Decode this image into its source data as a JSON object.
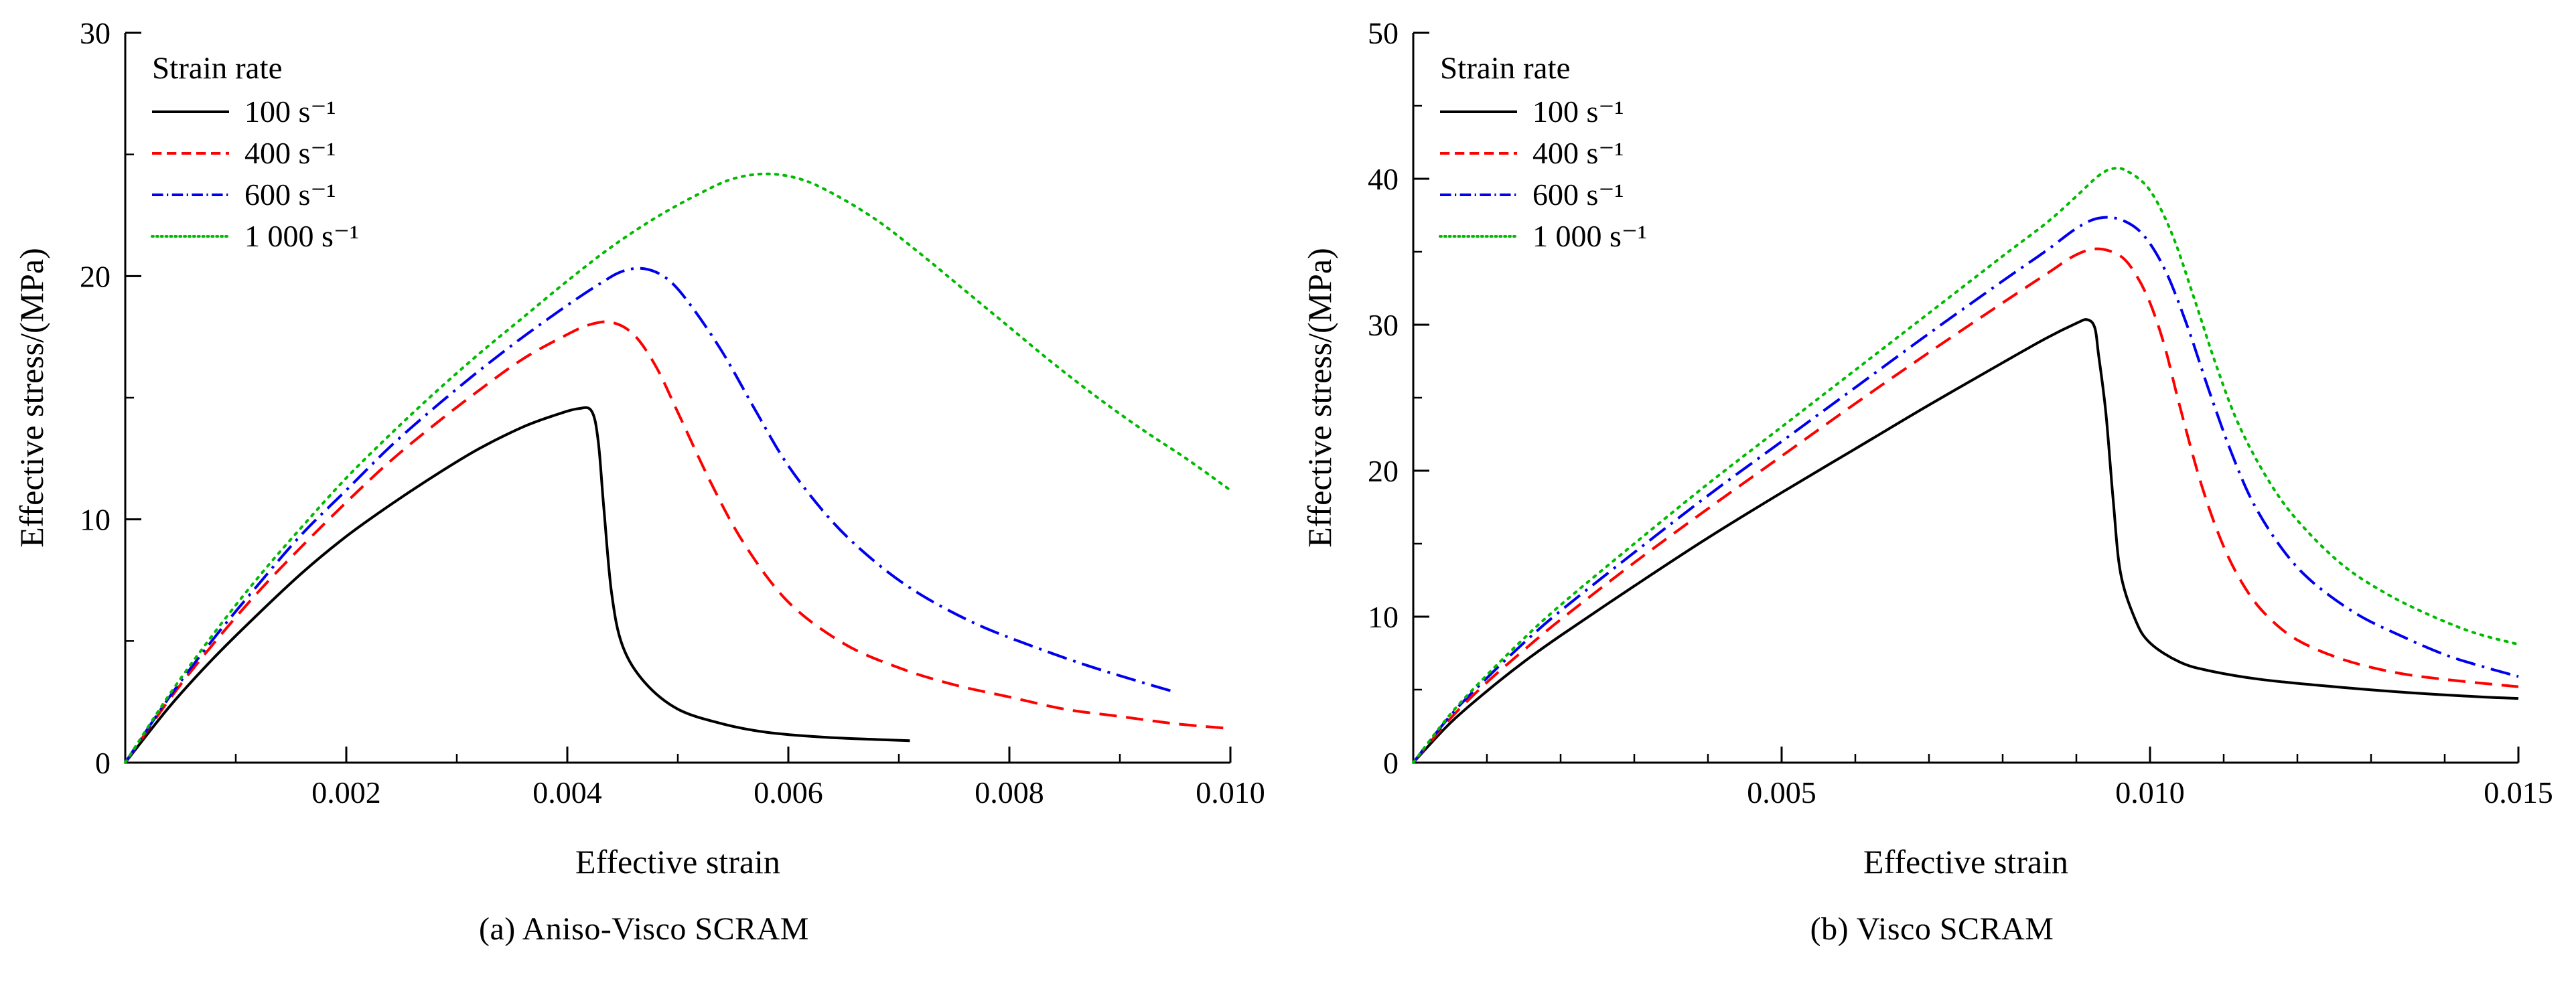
{
  "figure": {
    "background": "#ffffff",
    "text_color": "#000000"
  },
  "chart_data": [
    {
      "type": "line",
      "id": "a",
      "caption": "(a) Aniso-Visco SCRAM",
      "xlabel": "Effective strain",
      "ylabel": "Effective stress/(MPa)",
      "xlim": [
        0,
        0.01
      ],
      "ylim": [
        0,
        30
      ],
      "xticks": [
        0.002,
        0.004,
        0.006,
        0.008,
        0.01
      ],
      "xtick_labels": [
        "0.002",
        "0.004",
        "0.006",
        "0.008",
        "0.010"
      ],
      "yticks": [
        0,
        10,
        20,
        30
      ],
      "ytick_labels": [
        "0",
        "10",
        "20",
        "30"
      ],
      "x_minor_step": 0.001,
      "y_minor_step": 5,
      "grid": false,
      "legend": {
        "title": "Strain rate",
        "position": "top-left"
      },
      "series": [
        {
          "name": "100 s⁻¹",
          "color": "#000000",
          "dash": [],
          "cap": "butt",
          "points": [
            [
              0,
              0
            ],
            [
              0.0004,
              2.3
            ],
            [
              0.0008,
              4.3
            ],
            [
              0.0012,
              6.1
            ],
            [
              0.0016,
              7.8
            ],
            [
              0.002,
              9.3
            ],
            [
              0.0024,
              10.6
            ],
            [
              0.0028,
              11.8
            ],
            [
              0.0032,
              12.9
            ],
            [
              0.0036,
              13.8
            ],
            [
              0.0039,
              14.3
            ],
            [
              0.0041,
              14.55
            ],
            [
              0.00422,
              14.45
            ],
            [
              0.00428,
              13.2
            ],
            [
              0.00433,
              10.5
            ],
            [
              0.0044,
              7.0
            ],
            [
              0.0045,
              4.8
            ],
            [
              0.0047,
              3.3
            ],
            [
              0.005,
              2.2
            ],
            [
              0.0054,
              1.6
            ],
            [
              0.0058,
              1.25
            ],
            [
              0.0063,
              1.05
            ],
            [
              0.0068,
              0.95
            ],
            [
              0.0071,
              0.9
            ]
          ]
        },
        {
          "name": "400 s⁻¹",
          "color": "#ff0000",
          "dash": [
            26,
            14
          ],
          "cap": "butt",
          "points": [
            [
              0,
              0
            ],
            [
              0.0004,
              2.6
            ],
            [
              0.0008,
              4.9
            ],
            [
              0.0012,
              7.0
            ],
            [
              0.0016,
              8.9
            ],
            [
              0.002,
              10.7
            ],
            [
              0.0024,
              12.4
            ],
            [
              0.0028,
              13.9
            ],
            [
              0.0032,
              15.3
            ],
            [
              0.0036,
              16.6
            ],
            [
              0.004,
              17.6
            ],
            [
              0.0042,
              18.0
            ],
            [
              0.0044,
              18.1
            ],
            [
              0.0046,
              17.6
            ],
            [
              0.0048,
              16.3
            ],
            [
              0.005,
              14.4
            ],
            [
              0.0053,
              11.5
            ],
            [
              0.0056,
              9.0
            ],
            [
              0.006,
              6.6
            ],
            [
              0.0065,
              4.9
            ],
            [
              0.007,
              3.9
            ],
            [
              0.0075,
              3.2
            ],
            [
              0.008,
              2.7
            ],
            [
              0.0085,
              2.2
            ],
            [
              0.009,
              1.9
            ],
            [
              0.0095,
              1.6
            ],
            [
              0.01,
              1.4
            ]
          ]
        },
        {
          "name": "600 s⁻¹",
          "color": "#0000ee",
          "dash": [
            30,
            10,
            4,
            10
          ],
          "cap": "butt",
          "points": [
            [
              0,
              0
            ],
            [
              0.0004,
              2.7
            ],
            [
              0.0008,
              5.1
            ],
            [
              0.0012,
              7.3
            ],
            [
              0.0016,
              9.4
            ],
            [
              0.002,
              11.2
            ],
            [
              0.0024,
              13.0
            ],
            [
              0.0028,
              14.6
            ],
            [
              0.0032,
              16.1
            ],
            [
              0.0036,
              17.5
            ],
            [
              0.004,
              18.8
            ],
            [
              0.0043,
              19.7
            ],
            [
              0.0045,
              20.2
            ],
            [
              0.0047,
              20.3
            ],
            [
              0.0049,
              19.9
            ],
            [
              0.0051,
              18.9
            ],
            [
              0.0054,
              16.9
            ],
            [
              0.0057,
              14.5
            ],
            [
              0.006,
              12.2
            ],
            [
              0.0064,
              9.9
            ],
            [
              0.0068,
              8.2
            ],
            [
              0.0072,
              6.9
            ],
            [
              0.0077,
              5.7
            ],
            [
              0.0082,
              4.8
            ],
            [
              0.0087,
              4.0
            ],
            [
              0.0092,
              3.3
            ],
            [
              0.0095,
              2.9
            ]
          ]
        },
        {
          "name": "1 000 s⁻¹",
          "color": "#00bb00",
          "dash": [
            3.5,
            9
          ],
          "cap": "round",
          "points": [
            [
              0,
              0
            ],
            [
              0.0004,
              2.8
            ],
            [
              0.0008,
              5.3
            ],
            [
              0.0012,
              7.6
            ],
            [
              0.0016,
              9.7
            ],
            [
              0.002,
              11.7
            ],
            [
              0.0024,
              13.5
            ],
            [
              0.0028,
              15.2
            ],
            [
              0.0032,
              16.8
            ],
            [
              0.0036,
              18.3
            ],
            [
              0.004,
              19.8
            ],
            [
              0.0044,
              21.2
            ],
            [
              0.0048,
              22.4
            ],
            [
              0.0052,
              23.4
            ],
            [
              0.0055,
              24.0
            ],
            [
              0.0058,
              24.2
            ],
            [
              0.0061,
              24.0
            ],
            [
              0.0064,
              23.4
            ],
            [
              0.0068,
              22.3
            ],
            [
              0.0072,
              20.9
            ],
            [
              0.0076,
              19.4
            ],
            [
              0.008,
              17.9
            ],
            [
              0.0084,
              16.4
            ],
            [
              0.0088,
              15.0
            ],
            [
              0.0092,
              13.7
            ],
            [
              0.0096,
              12.5
            ],
            [
              0.01,
              11.2
            ]
          ]
        }
      ]
    },
    {
      "type": "line",
      "id": "b",
      "caption": "(b) Visco SCRAM",
      "xlabel": "Effective strain",
      "ylabel": "Effective stress/(MPa)",
      "xlim": [
        0,
        0.015
      ],
      "ylim": [
        0,
        50
      ],
      "xticks": [
        0.005,
        0.01,
        0.015
      ],
      "xtick_labels": [
        "0.005",
        "0.010",
        "0.015"
      ],
      "yticks": [
        0,
        10,
        20,
        30,
        40,
        50
      ],
      "ytick_labels": [
        "0",
        "10",
        "20",
        "30",
        "40",
        "50"
      ],
      "x_minor_step": 0.001,
      "y_minor_step": 5,
      "grid": false,
      "legend": {
        "title": "Strain rate",
        "position": "top-left"
      },
      "series": [
        {
          "name": "100 s⁻¹",
          "color": "#000000",
          "dash": [],
          "cap": "butt",
          "points": [
            [
              0,
              0
            ],
            [
              0.0005,
              2.7
            ],
            [
              0.001,
              4.9
            ],
            [
              0.0015,
              6.9
            ],
            [
              0.002,
              8.7
            ],
            [
              0.003,
              12.1
            ],
            [
              0.004,
              15.4
            ],
            [
              0.005,
              18.5
            ],
            [
              0.006,
              21.5
            ],
            [
              0.007,
              24.5
            ],
            [
              0.008,
              27.4
            ],
            [
              0.0086,
              29.1
            ],
            [
              0.009,
              30.1
            ],
            [
              0.00915,
              30.35
            ],
            [
              0.00925,
              29.8
            ],
            [
              0.0093,
              28.0
            ],
            [
              0.0094,
              24.0
            ],
            [
              0.0095,
              18.0
            ],
            [
              0.0096,
              13.0
            ],
            [
              0.0098,
              9.8
            ],
            [
              0.01,
              8.2
            ],
            [
              0.0104,
              6.9
            ],
            [
              0.0108,
              6.3
            ],
            [
              0.0115,
              5.7
            ],
            [
              0.0125,
              5.2
            ],
            [
              0.0135,
              4.8
            ],
            [
              0.0145,
              4.5
            ],
            [
              0.015,
              4.4
            ]
          ]
        },
        {
          "name": "400 s⁻¹",
          "color": "#ff0000",
          "dash": [
            26,
            14
          ],
          "cap": "butt",
          "points": [
            [
              0,
              0
            ],
            [
              0.0005,
              3.0
            ],
            [
              0.001,
              5.5
            ],
            [
              0.0015,
              7.7
            ],
            [
              0.002,
              9.8
            ],
            [
              0.003,
              13.7
            ],
            [
              0.004,
              17.4
            ],
            [
              0.005,
              21.0
            ],
            [
              0.006,
              24.6
            ],
            [
              0.007,
              28.1
            ],
            [
              0.008,
              31.5
            ],
            [
              0.0086,
              33.5
            ],
            [
              0.009,
              34.8
            ],
            [
              0.0093,
              35.2
            ],
            [
              0.0096,
              34.7
            ],
            [
              0.0098,
              33.5
            ],
            [
              0.01,
              31.5
            ],
            [
              0.0102,
              28.5
            ],
            [
              0.0104,
              24.5
            ],
            [
              0.0107,
              19.0
            ],
            [
              0.011,
              14.8
            ],
            [
              0.0113,
              11.9
            ],
            [
              0.0116,
              10.0
            ],
            [
              0.012,
              8.4
            ],
            [
              0.0126,
              7.1
            ],
            [
              0.0133,
              6.2
            ],
            [
              0.014,
              5.7
            ],
            [
              0.015,
              5.2
            ]
          ]
        },
        {
          "name": "600 s⁻¹",
          "color": "#0000ee",
          "dash": [
            30,
            10,
            4,
            10
          ],
          "cap": "butt",
          "points": [
            [
              0,
              0
            ],
            [
              0.0005,
              3.2
            ],
            [
              0.001,
              5.8
            ],
            [
              0.0015,
              8.2
            ],
            [
              0.002,
              10.4
            ],
            [
              0.003,
              14.4
            ],
            [
              0.004,
              18.3
            ],
            [
              0.005,
              22.0
            ],
            [
              0.006,
              25.7
            ],
            [
              0.007,
              29.4
            ],
            [
              0.008,
              33.0
            ],
            [
              0.0086,
              35.1
            ],
            [
              0.009,
              36.6
            ],
            [
              0.0093,
              37.3
            ],
            [
              0.0096,
              37.2
            ],
            [
              0.0099,
              36.2
            ],
            [
              0.0102,
              33.8
            ],
            [
              0.0105,
              30.0
            ],
            [
              0.0108,
              25.5
            ],
            [
              0.0111,
              21.3
            ],
            [
              0.0114,
              17.8
            ],
            [
              0.0118,
              14.6
            ],
            [
              0.0122,
              12.4
            ],
            [
              0.0128,
              10.2
            ],
            [
              0.0134,
              8.7
            ],
            [
              0.014,
              7.4
            ],
            [
              0.0145,
              6.6
            ],
            [
              0.015,
              5.9
            ]
          ]
        },
        {
          "name": "1 000 s⁻¹",
          "color": "#00bb00",
          "dash": [
            3.5,
            9
          ],
          "cap": "round",
          "points": [
            [
              0,
              0
            ],
            [
              0.0005,
              3.3
            ],
            [
              0.001,
              6.0
            ],
            [
              0.0015,
              8.5
            ],
            [
              0.002,
              10.8
            ],
            [
              0.003,
              15.0
            ],
            [
              0.004,
              19.1
            ],
            [
              0.005,
              23.0
            ],
            [
              0.006,
              26.9
            ],
            [
              0.007,
              30.8
            ],
            [
              0.008,
              34.7
            ],
            [
              0.0086,
              37.0
            ],
            [
              0.009,
              38.8
            ],
            [
              0.0093,
              40.2
            ],
            [
              0.0095,
              40.7
            ],
            [
              0.0097,
              40.5
            ],
            [
              0.01,
              39.2
            ],
            [
              0.0103,
              36.2
            ],
            [
              0.0106,
              31.8
            ],
            [
              0.0109,
              27.2
            ],
            [
              0.0112,
              23.2
            ],
            [
              0.0116,
              19.4
            ],
            [
              0.012,
              16.6
            ],
            [
              0.0126,
              13.6
            ],
            [
              0.0132,
              11.6
            ],
            [
              0.0138,
              10.1
            ],
            [
              0.0144,
              8.9
            ],
            [
              0.015,
              8.1
            ]
          ]
        }
      ]
    }
  ]
}
